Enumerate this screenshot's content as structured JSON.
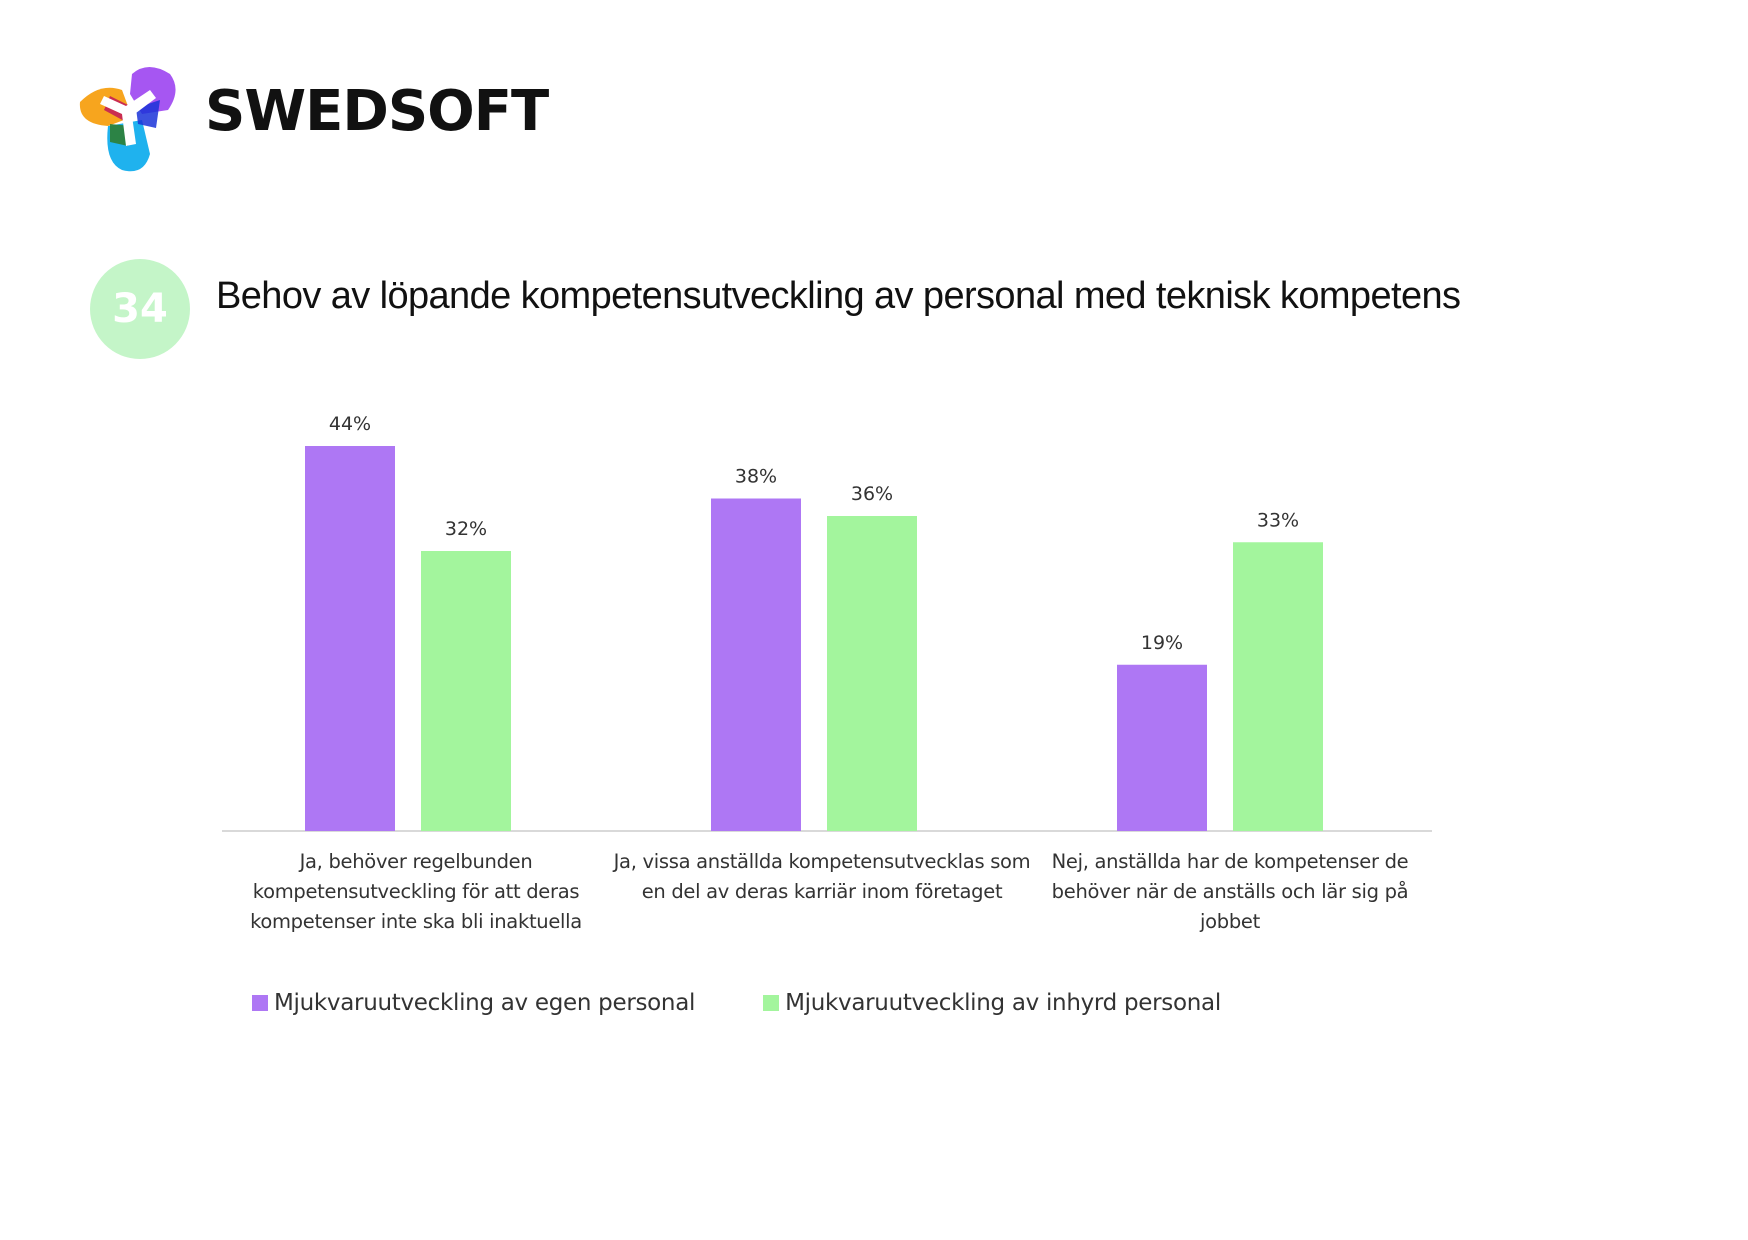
{
  "brand": {
    "name": "SWEDSOFT"
  },
  "figure": {
    "number": "34"
  },
  "colors": {
    "series_1": "#AE77F4",
    "series_2": "#A3F59D",
    "badge": "#C4F5C8",
    "axis": "#D9D9D9",
    "text": "#333333"
  },
  "chart_data": {
    "type": "bar",
    "title": "Behov av löpande kompetensutveckling av personal med teknisk kompetens",
    "categories": [
      "Ja, behöver regelbunden\nkompetensutveckling för att deras\nkompetenser inte ska bli inaktuella",
      "Ja, vissa anställda kompetensutvecklas som\nen del av deras karriär inom företaget",
      "Nej, anställda har de kompetenser de\nbehöver när de anställs och lär sig på jobbet"
    ],
    "series": [
      {
        "name": "Mjukvaruutveckling av egen personal",
        "values": [
          44,
          38,
          19
        ],
        "labels": [
          "44%",
          "38%",
          "19%"
        ],
        "color": "#AE77F4"
      },
      {
        "name": "Mjukvaruutveckling av inhyrd personal",
        "values": [
          32,
          36,
          33
        ],
        "labels": [
          "32%",
          "36%",
          "33%"
        ],
        "color": "#A3F59D"
      }
    ],
    "xlabel": "",
    "ylabel": "",
    "ylim": [
      0,
      50
    ],
    "grid": false,
    "y_axis_visible": false,
    "legend": "bottom-left"
  }
}
